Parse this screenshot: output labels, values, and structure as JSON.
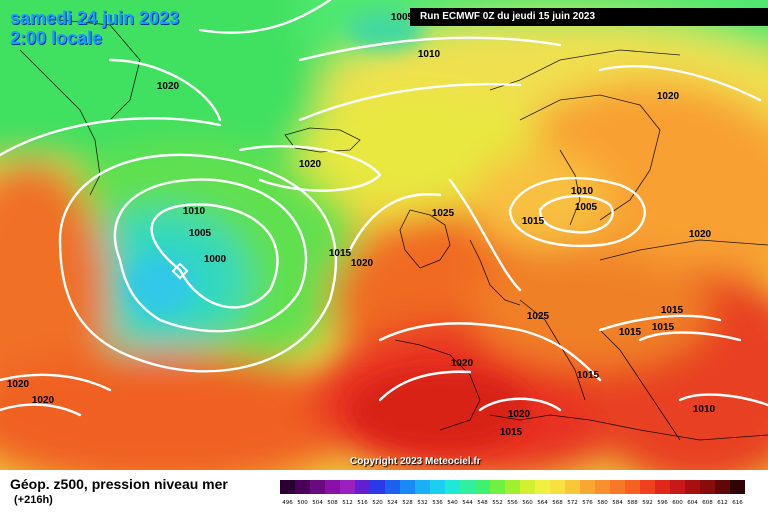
{
  "header": {
    "date_line1": "samedi 24 juin 2023",
    "date_line2": "2:00 locale",
    "run_label": "Run ECMWF 0Z du jeudi 15 juin 2023"
  },
  "footer": {
    "title": "Géop. z500, pression niveau mer",
    "subtitle": "(+216h)",
    "copyright": "Copyright 2023 Meteociel.fr"
  },
  "scale": {
    "labels": [
      "496",
      "500",
      "504",
      "508",
      "512",
      "516",
      "520",
      "524",
      "528",
      "532",
      "536",
      "540",
      "544",
      "548",
      "552",
      "556",
      "560",
      "564",
      "568",
      "572",
      "576",
      "580",
      "584",
      "588",
      "592",
      "596",
      "600",
      "604",
      "608",
      "612",
      "616"
    ],
    "colors": [
      "#2a0030",
      "#4a0058",
      "#6a0a80",
      "#8a10a8",
      "#9a20c0",
      "#6020d0",
      "#2a3ae8",
      "#1c60f0",
      "#1a88f5",
      "#1ab0f5",
      "#1ad0f0",
      "#20e8d8",
      "#30f0a0",
      "#40f070",
      "#70f040",
      "#a0f030",
      "#d0f030",
      "#f0f040",
      "#f8e040",
      "#f8c838",
      "#f8a830",
      "#f89030",
      "#f87828",
      "#f86020",
      "#f04020",
      "#e02818",
      "#c81818",
      "#a81010",
      "#880c0c",
      "#600808",
      "#300404"
    ]
  },
  "pressure_labels": [
    {
      "text": "1005"
    },
    {
      "text": "1010"
    },
    {
      "text": "1020"
    },
    {
      "text": "1020"
    },
    {
      "text": "1010"
    },
    {
      "text": "1005"
    },
    {
      "text": "1000"
    },
    {
      "text": "1015"
    },
    {
      "text": "1020"
    },
    {
      "text": "1025"
    },
    {
      "text": "1020"
    },
    {
      "text": "1010"
    },
    {
      "text": "1005"
    },
    {
      "text": "1015"
    },
    {
      "text": "1020"
    },
    {
      "text": "1025"
    },
    {
      "text": "1015"
    },
    {
      "text": "1015"
    },
    {
      "text": "1015"
    },
    {
      "text": "1020"
    },
    {
      "text": "1015"
    },
    {
      "text": "1020"
    },
    {
      "text": "1015"
    },
    {
      "text": "1010"
    },
    {
      "text": "1020"
    },
    {
      "text": "1020"
    }
  ]
}
